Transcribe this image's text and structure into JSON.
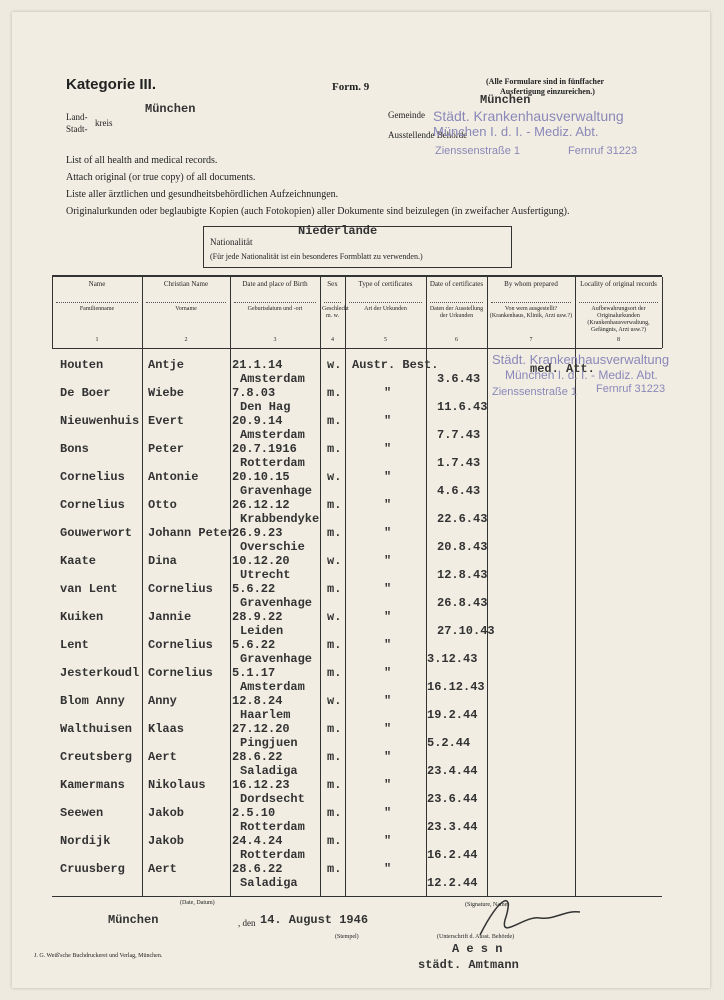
{
  "header": {
    "category": "Kategorie III.",
    "form": "Form. 9",
    "note": [
      "(Alle Formulare sind in fünffacher",
      "Ausfertigung einzureichen.)"
    ]
  },
  "place": {
    "land": "Land-",
    "stadt": "Stadt-",
    "kreis": "kreis",
    "value": "München",
    "gemeinde_label": "Gemeinde",
    "gemeinde": "München",
    "authority_label": "Ausstellende Behörde"
  },
  "stamp_top": [
    "Städt. Krankenhausverwaltung",
    "München I. d. I. - Mediz. Abt.",
    "Zienssenstraße 1",
    "Fernruf 31223"
  ],
  "instructions": [
    "List of all health and medical records.",
    "Attach original (or true copy) of all documents.",
    "Liste aller ärztlichen und gesundheitsbehördlichen Aufzeichnungen.",
    "Originalurkunden oder beglaubigte Kopien (auch Fotokopien) aller Dokumente sind beizulegen (in zweifacher Ausfertigung)."
  ],
  "nationality": {
    "label": "Nationalität",
    "note": "(Für jede Nationalität ist ein besonderes Formblatt zu verwenden.)",
    "value": "Niederlande"
  },
  "table": {
    "columns": [
      {
        "en": "Name",
        "de": "Familienname",
        "no": "1"
      },
      {
        "en": "Christian Name",
        "de": "Vorname",
        "no": "2"
      },
      {
        "en": "Date and place of Birth",
        "de": "Geburtsdatum und -ort",
        "no": "3"
      },
      {
        "en": "Sex",
        "de": "Geschlecht m. w.",
        "no": "4"
      },
      {
        "en": "Type of certificates",
        "de": "Art der Urkunden",
        "no": "5"
      },
      {
        "en": "Date of certificates",
        "de": "Daten der Ausstellung der Urkunden",
        "no": "6"
      },
      {
        "en": "By whom prepared",
        "de": "Von wem ausgestellt? (Krankenhaus, Klinik, Arzt usw.?)",
        "no": "7"
      },
      {
        "en": "Locality of original records",
        "de": "Aufbewahrungsort der Originalurkunden (Krankenhausverwaltung, Gefängnis, Arzt usw.?)",
        "no": "8"
      }
    ],
    "rows": [
      [
        "Houten",
        "Antje",
        "21.1.14",
        "Amsterdam",
        "w.",
        "Austr. Best.",
        "3.6.43"
      ],
      [
        "De Boer",
        "Wiebe",
        "7.8.03",
        "Den Hag",
        "m.",
        "\"",
        "11.6.43"
      ],
      [
        "Nieuwenhuis",
        "Evert",
        "20.9.14",
        "Amsterdam",
        "m.",
        "\"",
        "7.7.43"
      ],
      [
        "Bons",
        "Peter",
        "20.7.1916",
        "Rotterdam",
        "m.",
        "\"",
        "1.7.43"
      ],
      [
        "Cornelius",
        "Antonie",
        "20.10.15",
        "Gravenhage",
        "w.",
        "\"",
        "4.6.43"
      ],
      [
        "Cornelius",
        "Otto",
        "26.12.12",
        "Krabbendyke",
        "m.",
        "\"",
        "22.6.43"
      ],
      [
        "Gouwerwort",
        "Johann Peter",
        "26.9.23",
        "Overschie",
        "m.",
        "\"",
        "20.8.43"
      ],
      [
        "Kaate",
        "Dina",
        "10.12.20",
        "Utrecht",
        "w.",
        "\"",
        "12.8.43"
      ],
      [
        "van Lent",
        "Cornelius",
        "5.6.22",
        "Gravenhage",
        "m.",
        "\"",
        "26.8.43"
      ],
      [
        "Kuiken",
        "Jannie",
        "28.9.22",
        "Leiden",
        "w.",
        "\"",
        "27.10.43"
      ],
      [
        "Lent",
        "Cornelius",
        "5.6.22",
        "Gravenhage",
        "m.",
        "\"",
        "3.12.43"
      ],
      [
        "Jesterkoudl",
        "Cornelius",
        "5.1.17",
        "Amsterdam",
        "m.",
        "\"",
        "16.12.43"
      ],
      [
        "Blom Anny",
        "Anny",
        "12.8.24",
        "Haarlem",
        "w.",
        "\"",
        "19.2.44"
      ],
      [
        "Walthuisen",
        "Klaas",
        "27.12.20",
        "Pingjuen",
        "m.",
        "\"",
        "5.2.44"
      ],
      [
        "Creutsberg",
        "Aert",
        "28.6.22",
        "Saladiga",
        "m.",
        "\"",
        "23.4.44"
      ],
      [
        "Kamermans",
        "Nikolaus",
        "16.12.23",
        "Dordsecht",
        "m.",
        "\"",
        "23.6.44"
      ],
      [
        "Seewen",
        "Jakob",
        "2.5.10",
        "Rotterdam",
        "m.",
        "\"",
        "23.3.44"
      ],
      [
        "Nordijk",
        "Jakob",
        "24.4.24",
        "Rotterdam",
        "m.",
        "\"",
        "16.2.44"
      ],
      [
        "Cruusberg",
        "Aert",
        "28.6.22",
        "Saladiga",
        "m.",
        "\"",
        "12.2.44"
      ]
    ],
    "prepared_by": "med. Att."
  },
  "stamp_table": [
    "Städt. Krankenhausverwaltung",
    "München I. d. I. - Mediz. Abt.",
    "Zienssenstraße 1",
    "Fernruf 31223"
  ],
  "footer": {
    "date_label": "(Date, Datum)",
    "city": "München",
    "den": ", den",
    "date": "14. August 1946",
    "stamp_label": "(Stempel)",
    "signature_label": "(Signature, Name)",
    "authority_sign_label": "(Unterschrift d. Ausst. Behörde)",
    "signer": "A e s n",
    "signer_title": "städt. Amtmann",
    "printer": "J. G. Weiß'sche Buchdruckerei und Verlag, München."
  }
}
